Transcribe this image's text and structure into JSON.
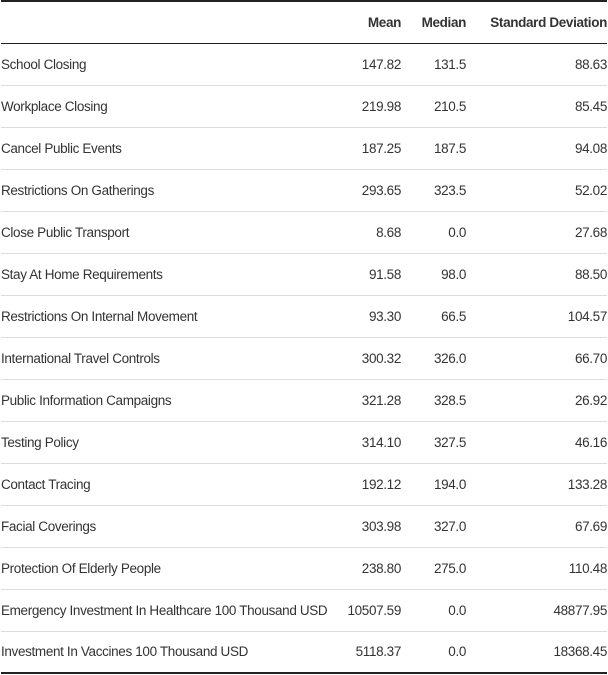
{
  "header": {
    "name": "",
    "mean": "Mean",
    "median": "Median",
    "sd": "Standard Deviation"
  },
  "rows": [
    {
      "name": "School Closing",
      "mean": "147.82",
      "median": "131.5",
      "sd": "88.63"
    },
    {
      "name": "Workplace Closing",
      "mean": "219.98",
      "median": "210.5",
      "sd": "85.45"
    },
    {
      "name": "Cancel Public Events",
      "mean": "187.25",
      "median": "187.5",
      "sd": "94.08"
    },
    {
      "name": "Restrictions On Gatherings",
      "mean": "293.65",
      "median": "323.5",
      "sd": "52.02"
    },
    {
      "name": "Close Public Transport",
      "mean": "8.68",
      "median": "0.0",
      "sd": "27.68"
    },
    {
      "name": "Stay At Home Requirements",
      "mean": "91.58",
      "median": "98.0",
      "sd": "88.50"
    },
    {
      "name": "Restrictions On Internal Movement",
      "mean": "93.30",
      "median": "66.5",
      "sd": "104.57"
    },
    {
      "name": "International Travel Controls",
      "mean": "300.32",
      "median": "326.0",
      "sd": "66.70"
    },
    {
      "name": "Public Information Campaigns",
      "mean": "321.28",
      "median": "328.5",
      "sd": "26.92"
    },
    {
      "name": "Testing Policy",
      "mean": "314.10",
      "median": "327.5",
      "sd": "46.16"
    },
    {
      "name": "Contact Tracing",
      "mean": "192.12",
      "median": "194.0",
      "sd": "133.28"
    },
    {
      "name": "Facial Coverings",
      "mean": "303.98",
      "median": "327.0",
      "sd": "67.69"
    },
    {
      "name": "Protection Of Elderly People",
      "mean": "238.80",
      "median": "275.0",
      "sd": "110.48"
    },
    {
      "name": "Emergency Investment In Healthcare 100 Thousand USD",
      "mean": "10507.59",
      "median": "0.0",
      "sd": "48877.95"
    },
    {
      "name": "Investment In Vaccines 100 Thousand USD",
      "mean": "5118.37",
      "median": "0.0",
      "sd": "18368.45"
    }
  ]
}
